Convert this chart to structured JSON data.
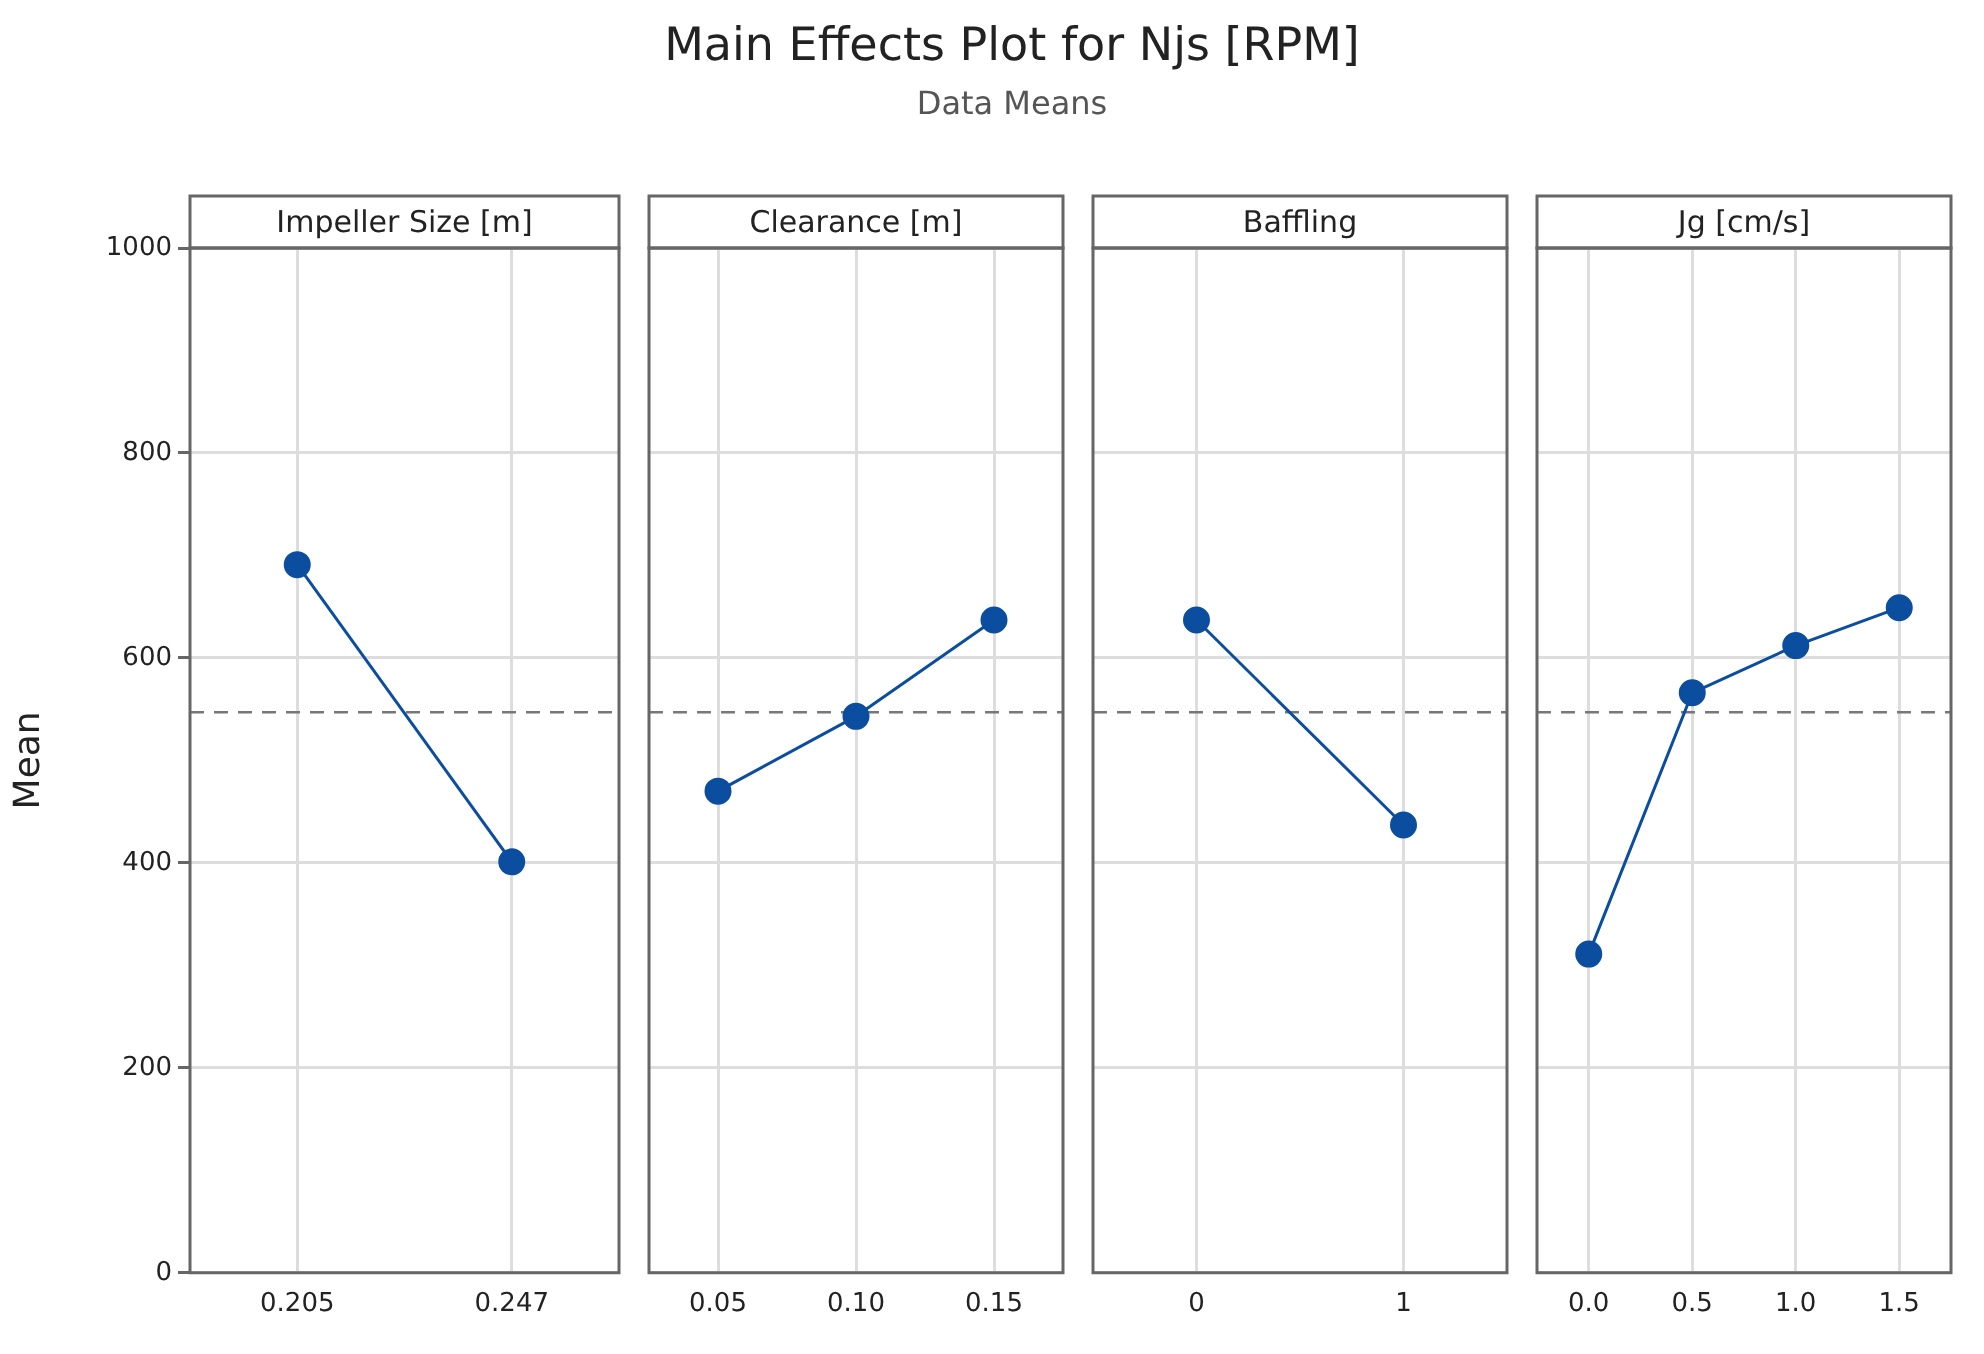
{
  "chart_data": [
    {
      "type": "other",
      "title": "Main Effects Plot for Njs [RPM]",
      "subtitle": "Data Means"
    },
    {
      "type": "line",
      "title": "Impeller Size [m]",
      "ylabel": "Mean",
      "categories": [
        "0.205",
        "0.247"
      ],
      "values": [
        691,
        401
      ],
      "color": "#0b4d9e",
      "ylim": [
        0,
        1000
      ],
      "yticks": [
        0,
        200,
        400,
        600,
        800,
        1000
      ],
      "grid": true,
      "marker": "circle",
      "ref_lines": [
        {
          "axis": "y",
          "value": 547,
          "color": "#777777",
          "line_style": "dashed"
        }
      ]
    },
    {
      "type": "line",
      "title": "Clearance [m]",
      "categories": [
        "0.05",
        "0.10",
        "0.15"
      ],
      "values": [
        470,
        543,
        637
      ],
      "color": "#0b4d9e",
      "ylim": [
        0,
        1000
      ],
      "yticks": [
        0,
        200,
        400,
        600,
        800,
        1000
      ],
      "grid": true,
      "marker": "circle",
      "tick_labels": "x",
      "ref_lines": [
        {
          "axis": "y",
          "value": 547,
          "color": "#777777",
          "line_style": "dashed"
        }
      ]
    },
    {
      "type": "line",
      "title": "Baffling",
      "categories": [
        "0",
        "1"
      ],
      "values": [
        637,
        437
      ],
      "color": "#0b4d9e",
      "ylim": [
        0,
        1000
      ],
      "yticks": [
        0,
        200,
        400,
        600,
        800,
        1000
      ],
      "grid": true,
      "marker": "circle",
      "tick_labels": "x",
      "ref_lines": [
        {
          "axis": "y",
          "value": 547,
          "color": "#777777",
          "line_style": "dashed"
        }
      ]
    },
    {
      "type": "line",
      "title": "Jg [cm/s]",
      "categories": [
        "0.0",
        "0.5",
        "1.0",
        "1.5"
      ],
      "values": [
        311,
        566,
        612,
        649
      ],
      "color": "#0b4d9e",
      "ylim": [
        0,
        1000
      ],
      "yticks": [
        0,
        200,
        400,
        600,
        800,
        1000
      ],
      "grid": true,
      "marker": "circle",
      "tick_labels": "x",
      "ref_lines": [
        {
          "axis": "y",
          "value": 547,
          "color": "#777777",
          "line_style": "dashed"
        }
      ]
    }
  ]
}
